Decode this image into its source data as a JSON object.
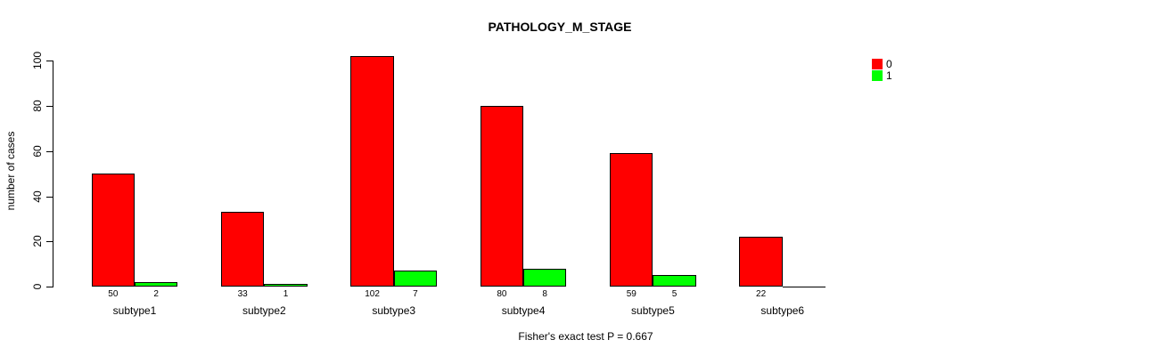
{
  "chart_data": {
    "type": "bar",
    "title": "PATHOLOGY_M_STAGE",
    "ylabel": "number of cases",
    "xlabel": "",
    "annotation": "Fisher's exact test P = 0.667",
    "categories": [
      "subtype1",
      "subtype2",
      "subtype3",
      "subtype4",
      "subtype5",
      "subtype6"
    ],
    "series": [
      {
        "name": "0",
        "color": "#FF0000",
        "values": [
          50,
          33,
          102,
          80,
          59,
          22
        ],
        "labels": [
          "50",
          "33",
          "102",
          "80",
          "59",
          "22"
        ]
      },
      {
        "name": "1",
        "color": "#00FF00",
        "values": [
          2,
          1,
          7,
          8,
          5,
          0
        ],
        "labels": [
          "2",
          "1",
          "7",
          "8",
          "5",
          ""
        ]
      }
    ],
    "ylim": [
      0,
      100
    ],
    "yticks": [
      0,
      20,
      40,
      60,
      80,
      100
    ],
    "grid": false,
    "legend_position": "top-right",
    "bar_border_color": "#000000"
  }
}
